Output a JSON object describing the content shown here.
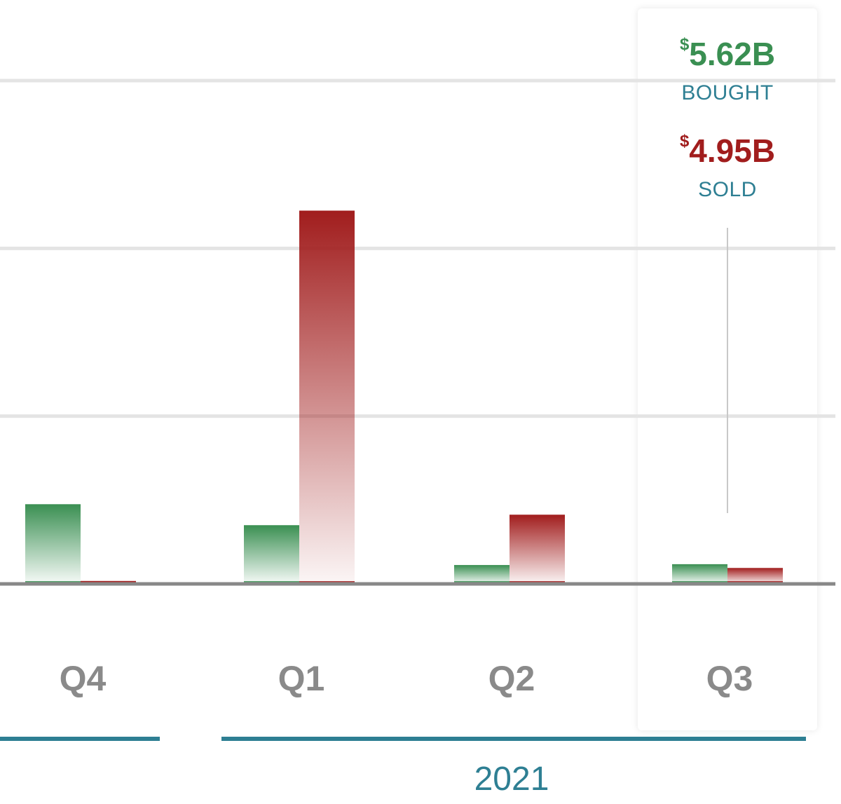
{
  "chart_data": {
    "type": "bar",
    "categories": [
      "Q4",
      "Q1",
      "Q2",
      "Q3"
    ],
    "series": [
      {
        "name": "BOUGHT",
        "color": "#3a8f52",
        "values": [
          1.9,
          1.4,
          0.45,
          0.47
        ]
      },
      {
        "name": "SOLD",
        "color": "#a11d1d",
        "values": [
          0.07,
          8.9,
          1.65,
          0.38
        ]
      }
    ],
    "ylim": [
      0,
      12
    ],
    "gridlines": [
      0,
      4,
      8,
      12
    ],
    "grid": true,
    "year_groups": [
      {
        "label": "",
        "categories": [
          "Q4"
        ]
      },
      {
        "label": "2021",
        "categories": [
          "Q1",
          "Q2",
          "Q3"
        ]
      }
    ],
    "highlighted_category": "Q3"
  },
  "tooltip": {
    "bought_currency": "$",
    "bought_amount": "5.62B",
    "bought_label": "BOUGHT",
    "sold_currency": "$",
    "sold_amount": "4.95B",
    "sold_label": "SOLD"
  },
  "year_label": "2021",
  "colors": {
    "bought": "#3a8f52",
    "sold": "#a11d1d",
    "axis_label": "#8a8a8a",
    "year_accent": "#2e7f93",
    "gridline": "#e4e4e4",
    "baseline": "#888888"
  }
}
